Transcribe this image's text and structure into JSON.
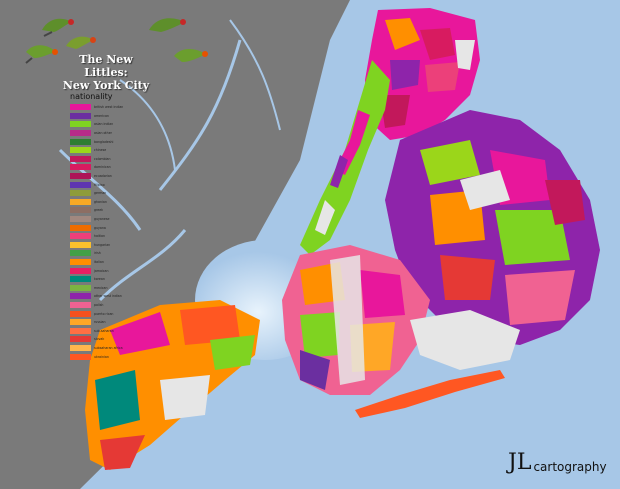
{
  "title": {
    "line1": "The New Littles:",
    "line2": "New York City"
  },
  "legend": {
    "heading": "nationality",
    "items": [
      {
        "label": "british west indian",
        "color": "#e8179b"
      },
      {
        "label": "american",
        "color": "#6b2fa0"
      },
      {
        "label": "asian indian",
        "color": "#7fd321"
      },
      {
        "label": "asian other",
        "color": "#b72b89"
      },
      {
        "label": "bangladeshi",
        "color": "#2e7d32"
      },
      {
        "label": "chinese",
        "color": "#9bd61a"
      },
      {
        "label": "colombian",
        "color": "#c2185b"
      },
      {
        "label": "dominican",
        "color": "#d81b60"
      },
      {
        "label": "ecuadorian",
        "color": "#ad1457"
      },
      {
        "label": "filipino",
        "color": "#5e35b1"
      },
      {
        "label": "german",
        "color": "#8e9c3a"
      },
      {
        "label": "ghanian",
        "color": "#f9a825"
      },
      {
        "label": "greek",
        "color": "#8d6e63"
      },
      {
        "label": "guyanese",
        "color": "#a1887f"
      },
      {
        "label": "guyana",
        "color": "#ef6c00"
      },
      {
        "label": "haitian",
        "color": "#ec407a"
      },
      {
        "label": "hungarian",
        "color": "#fbc02d"
      },
      {
        "label": "irish",
        "color": "#43a047"
      },
      {
        "label": "italian",
        "color": "#ff8f00"
      },
      {
        "label": "jamaican",
        "color": "#e91e63"
      },
      {
        "label": "korean",
        "color": "#00897b"
      },
      {
        "label": "mexican",
        "color": "#7cb342"
      },
      {
        "label": "other west indian",
        "color": "#8e24aa"
      },
      {
        "label": "polish",
        "color": "#f06292"
      },
      {
        "label": "puerto rican",
        "color": "#f4511e"
      },
      {
        "label": "russian",
        "color": "#ffa726"
      },
      {
        "label": "sub-saharan",
        "color": "#ff7043"
      },
      {
        "label": "slovak",
        "color": "#e53935"
      },
      {
        "label": "subsaharan africa",
        "color": "#ffb74d"
      },
      {
        "label": "ukrainian",
        "color": "#ff5722"
      }
    ]
  },
  "credit": {
    "mark": "JL",
    "text": "cartography"
  },
  "colors": {
    "water": "#a7c7e7",
    "mainland": "#7a7a7a",
    "parks": "#e6e6e6"
  }
}
